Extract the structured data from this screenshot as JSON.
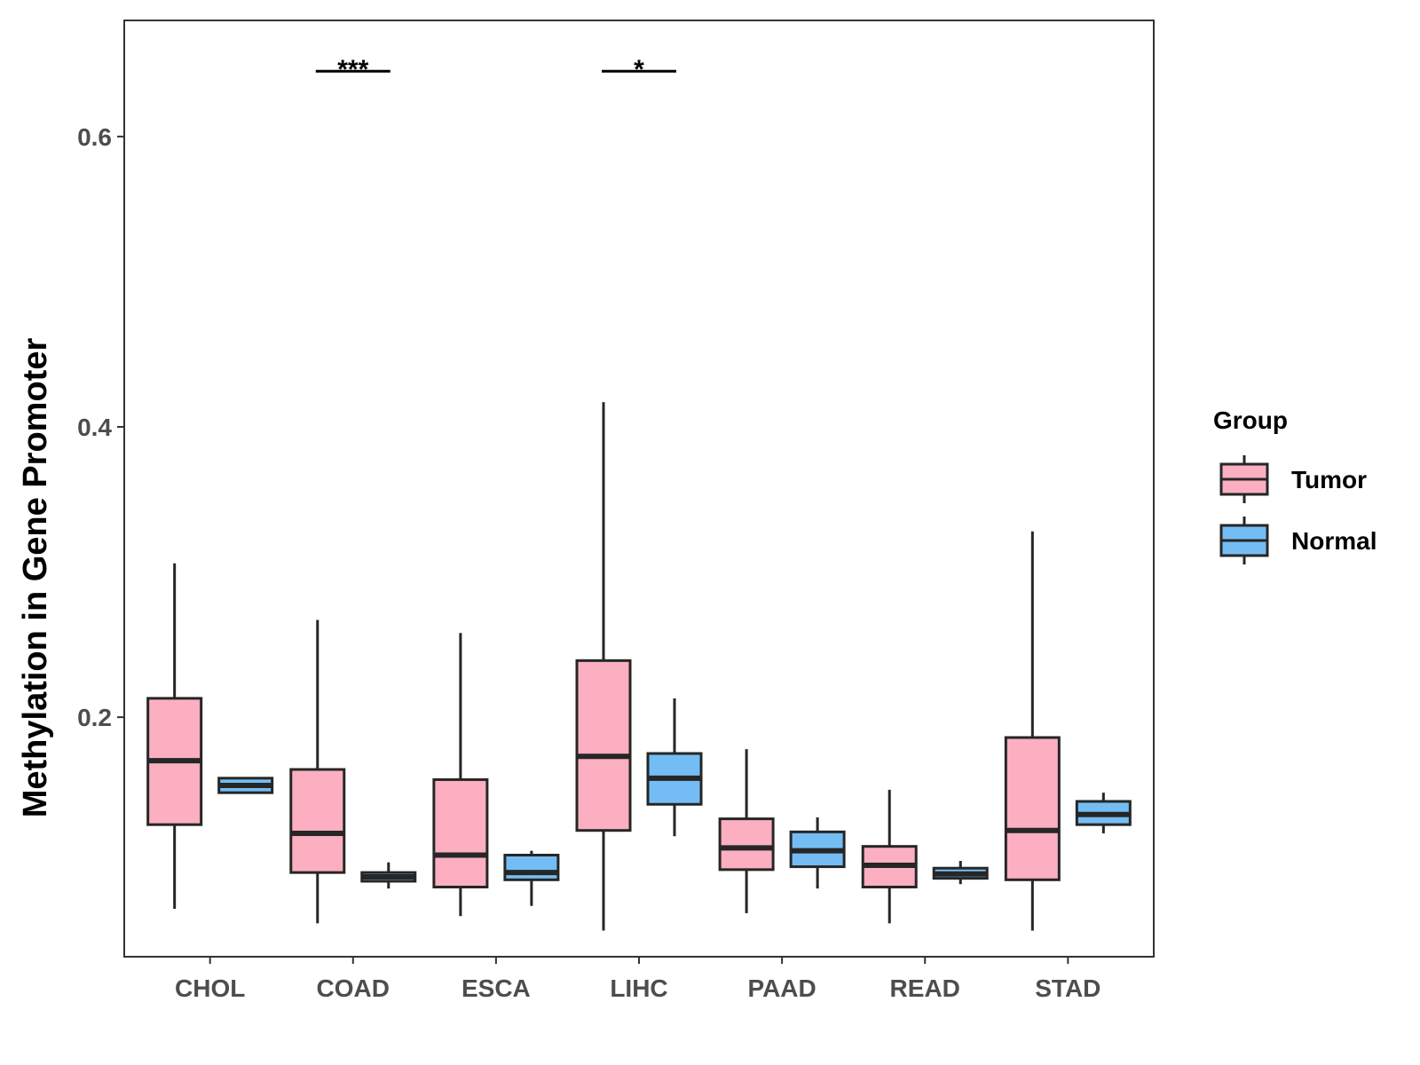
{
  "chart_data": {
    "type": "boxplot",
    "title": "",
    "xlabel": "",
    "ylabel": "Methylation in Gene Promoter",
    "ylim": [
      0.035,
      0.68
    ],
    "yticks": [
      0.2,
      0.4,
      0.6
    ],
    "ytick_labels": [
      "0.2",
      "0.4",
      "0.6"
    ],
    "grid": false,
    "categories": [
      "CHOL",
      "COAD",
      "ESCA",
      "LIHC",
      "PAAD",
      "READ",
      "STAD"
    ],
    "legend": {
      "title": "Group",
      "position": "right",
      "entries": [
        {
          "name": "Tumor",
          "color": "#FBAFC0"
        },
        {
          "name": "Normal",
          "color": "#74BDF4"
        }
      ]
    },
    "series": [
      {
        "name": "Tumor",
        "color": "#FBAFC0",
        "boxes": [
          {
            "category": "CHOL",
            "min": 0.068,
            "q1": 0.126,
            "median": 0.17,
            "q3": 0.213,
            "max": 0.306
          },
          {
            "category": "COAD",
            "min": 0.058,
            "q1": 0.093,
            "median": 0.12,
            "q3": 0.164,
            "max": 0.267
          },
          {
            "category": "ESCA",
            "min": 0.063,
            "q1": 0.083,
            "median": 0.105,
            "q3": 0.157,
            "max": 0.258
          },
          {
            "category": "LIHC",
            "min": 0.053,
            "q1": 0.122,
            "median": 0.173,
            "q3": 0.239,
            "max": 0.417
          },
          {
            "category": "PAAD",
            "min": 0.065,
            "q1": 0.095,
            "median": 0.11,
            "q3": 0.13,
            "max": 0.178
          },
          {
            "category": "READ",
            "min": 0.058,
            "q1": 0.083,
            "median": 0.098,
            "q3": 0.111,
            "max": 0.15
          },
          {
            "category": "STAD",
            "min": 0.053,
            "q1": 0.088,
            "median": 0.122,
            "q3": 0.186,
            "max": 0.328
          }
        ]
      },
      {
        "name": "Normal",
        "color": "#74BDF4",
        "boxes": [
          {
            "category": "CHOL",
            "min": 0.148,
            "q1": 0.148,
            "median": 0.153,
            "q3": 0.158,
            "max": 0.158
          },
          {
            "category": "COAD",
            "min": 0.082,
            "q1": 0.087,
            "median": 0.09,
            "q3": 0.093,
            "max": 0.1
          },
          {
            "category": "ESCA",
            "min": 0.07,
            "q1": 0.088,
            "median": 0.093,
            "q3": 0.105,
            "max": 0.108
          },
          {
            "category": "LIHC",
            "min": 0.118,
            "q1": 0.14,
            "median": 0.158,
            "q3": 0.175,
            "max": 0.213
          },
          {
            "category": "PAAD",
            "min": 0.082,
            "q1": 0.097,
            "median": 0.108,
            "q3": 0.121,
            "max": 0.131
          },
          {
            "category": "READ",
            "min": 0.085,
            "q1": 0.089,
            "median": 0.092,
            "q3": 0.096,
            "max": 0.101
          },
          {
            "category": "STAD",
            "min": 0.12,
            "q1": 0.126,
            "median": 0.133,
            "q3": 0.142,
            "max": 0.148
          }
        ]
      }
    ],
    "annotations": [
      {
        "category": "COAD",
        "label": "***",
        "y": 0.645
      },
      {
        "category": "LIHC",
        "label": "*",
        "y": 0.645
      }
    ]
  }
}
